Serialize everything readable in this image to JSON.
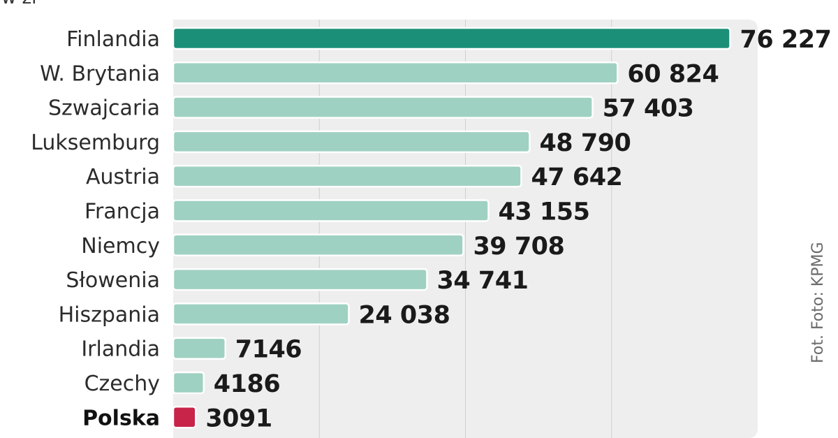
{
  "unit_label": "w zł",
  "source": "Fot. Foto: KPMG",
  "colors": {
    "highlight": "#1b8f78",
    "normal": "#9fd1c2",
    "poland": "#c8244a",
    "plot_background": "#eeeeee",
    "gridline": "#cfcfcf"
  },
  "chart_data": {
    "type": "bar",
    "orientation": "horizontal",
    "categories": [
      "Finlandia",
      "W. Brytania",
      "Szwajcaria",
      "Luksemburg",
      "Austria",
      "Francja",
      "Niemcy",
      "Słowenia",
      "Hiszpania",
      "Irlandia",
      "Czechy",
      "Polska"
    ],
    "values": [
      76227,
      60824,
      57403,
      48790,
      47642,
      43155,
      39708,
      34741,
      24038,
      7146,
      4186,
      3091
    ],
    "value_labels": [
      "76 227",
      "60 824",
      "57 403",
      "48 790",
      "47 642",
      "43 155",
      "39 708",
      "34 741",
      "24 038",
      "7146",
      "4186",
      "3091"
    ],
    "highlight": "Finlandia",
    "emphasis": "Polska",
    "xlim": [
      0,
      80000
    ],
    "gridlines": [
      20000,
      40000,
      60000
    ],
    "grid": true,
    "title": "",
    "xlabel": "",
    "ylabel": ""
  }
}
